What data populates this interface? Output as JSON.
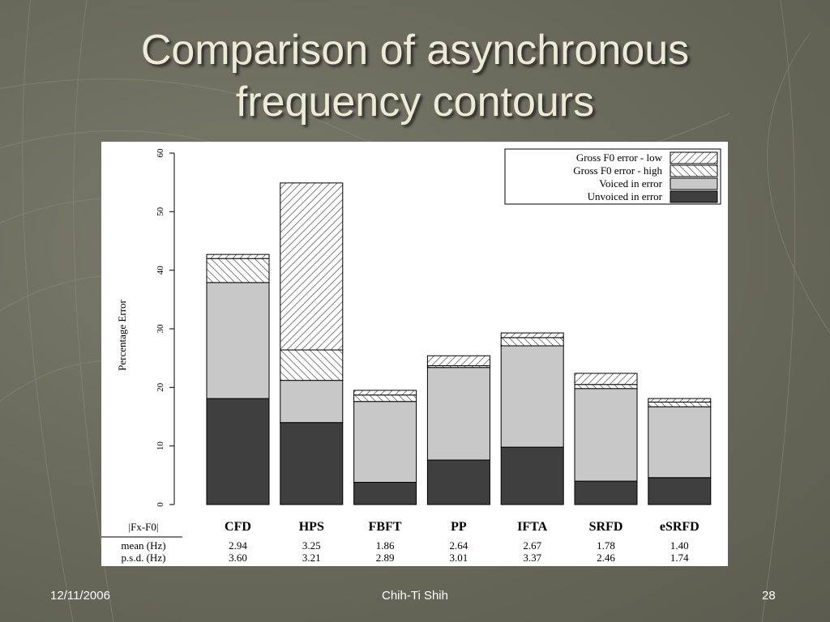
{
  "slide": {
    "title_line1": "Comparison of asynchronous",
    "title_line2": "frequency contours",
    "footer_date": "12/11/2006",
    "footer_author": "Chih-Ti Shih",
    "footer_page": "28"
  },
  "chart_data": {
    "type": "bar",
    "stacked": true,
    "categories": [
      "CFD",
      "HPS",
      "FBFT",
      "PP",
      "IFTA",
      "SRFD",
      "eSRFD"
    ],
    "ylabel": "Percentage Error",
    "ylim": [
      0,
      60
    ],
    "yticks": [
      "0",
      "10",
      "20",
      "30",
      "40",
      "50",
      "60"
    ],
    "grid": false,
    "legend_position": "top-right",
    "series": [
      {
        "name": "Unvoiced in error",
        "values": [
          18.1,
          14.0,
          3.8,
          7.6,
          9.8,
          4.0,
          4.6
        ],
        "fill": "#3f3f3f",
        "pattern": "none"
      },
      {
        "name": "Voiced in error",
        "values": [
          19.8,
          7.2,
          13.8,
          15.8,
          17.3,
          15.8,
          12.1
        ],
        "fill": "#c8c8c8",
        "pattern": "none"
      },
      {
        "name": "Gross F0 error - high",
        "values": [
          4.1,
          5.2,
          1.1,
          0.3,
          1.4,
          0.7,
          0.8
        ],
        "fill": "#ffffff",
        "pattern": "back"
      },
      {
        "name": "Gross F0 error - low",
        "values": [
          0.7,
          28.5,
          0.8,
          1.7,
          0.8,
          1.9,
          0.6
        ],
        "fill": "#ffffff",
        "pattern": "forward"
      }
    ],
    "legend_order": [
      "Gross F0 error - low",
      "Gross F0 error - high",
      "Voiced in error",
      "Unvoiced in error"
    ],
    "table": {
      "header_label": "|Fx-F0|",
      "rows": [
        {
          "label": "mean (Hz)",
          "values": [
            "2.94",
            "3.25",
            "1.86",
            "2.64",
            "2.67",
            "1.78",
            "1.40"
          ]
        },
        {
          "label": "p.s.d. (Hz)",
          "values": [
            "3.60",
            "3.21",
            "2.89",
            "3.01",
            "3.37",
            "2.46",
            "1.74"
          ]
        }
      ]
    }
  }
}
